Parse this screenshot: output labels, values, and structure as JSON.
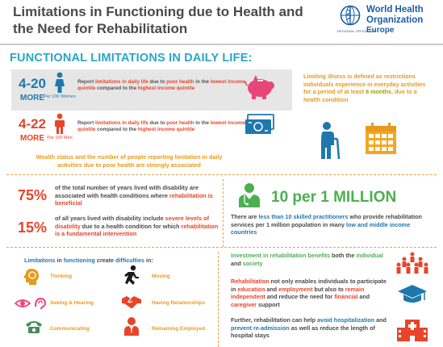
{
  "header": {
    "title": "Limitations in Functioning due to Health and the Need for Rehabilitation",
    "who_name_line1": "World Health",
    "who_name_line2": "Organization",
    "who_office": "REGIONAL OFFICE FOR",
    "who_europe": "Europe"
  },
  "section_title": "FUNCTIONAL LIMITATIONS IN DAILY LIFE:",
  "women": {
    "range": "4-20",
    "more": "MORE",
    "per": "Per 100 Women",
    "text_a": "Report ",
    "text_b": "limitations in daily life",
    "text_c": " due to ",
    "text_d": "poor health",
    "text_e": " in the ",
    "text_f": "lowest income quintile",
    "text_g": " compared to the ",
    "text_h": "highest income quintile"
  },
  "men": {
    "range": "4-22",
    "more": "MORE",
    "per": "Per 100 Men",
    "text_a": "Report ",
    "text_b": "limitations in daily life",
    "text_c": " due to ",
    "text_d": "poor health",
    "text_e": " in the ",
    "text_f": "lowest income quintile",
    "text_g": " compared to the ",
    "text_h": "highest income quintile"
  },
  "wealth": "Wealth status and the number of people reporting limitation in daily activities due to poor health are strongly associated",
  "limiting": {
    "a": "Limiting illness is defined as restrictions individuals experience in everyday activities for a period of at least ",
    "b": "6 months",
    "c": ", due to a health condition"
  },
  "stat75": {
    "pct": "75%",
    "a": "of the total number of years lived with disability are associated with health conditions where ",
    "b": "rehabilitation is beneficial"
  },
  "stat15": {
    "pct": "15%",
    "a": "of all years lived with disability include ",
    "b": "severe levels of disability",
    "c": " due to a health condition for which ",
    "d": "rehabilitation is a fundamental intervention"
  },
  "per_million": "10 per 1 MILLION",
  "practitioners": {
    "a": "There are ",
    "b": "less than 10 skilled practitioners",
    "c": " who provide rehabilitation services per 1 million population in many ",
    "d": "low and middle income countries"
  },
  "limitations_heading": {
    "a": "Limitations",
    "b": " in ",
    "c": "functioning",
    "d": " create ",
    "e": "difficulties",
    "f": " in:"
  },
  "difficulties": [
    "Thinking",
    "Moving",
    "Seeing & Hearing",
    "Having Relationships",
    "Communicating",
    "Remaining Employed"
  ],
  "investment": {
    "a": "Investment in rehabilitation benefits",
    "b": " both the ",
    "c": "individual",
    "d": " and ",
    "e": "society"
  },
  "rehab": {
    "a": "Rehabilitation",
    "b": " not only enables individuals to participate in ",
    "c": "education",
    "d": " and ",
    "e": "employment",
    "f": " but also to ",
    "g": "remain independent",
    "h": " and reduce the need for ",
    "i": "financial",
    "j": " and ",
    "k": "caregiver",
    "l": " support"
  },
  "further": {
    "a": "Further, rehabilitation can help ",
    "b": "avoid hospitalization",
    "c": " and ",
    "d": "prevent re-admission",
    "e": " as well as reduce the length of hospital stays"
  },
  "colors": {
    "blue": "#1f78ad",
    "red": "#e8442a",
    "orange": "#e89a1a",
    "green": "#4caf50",
    "pink": "#e8457a",
    "teal": "#2aa6c4"
  }
}
